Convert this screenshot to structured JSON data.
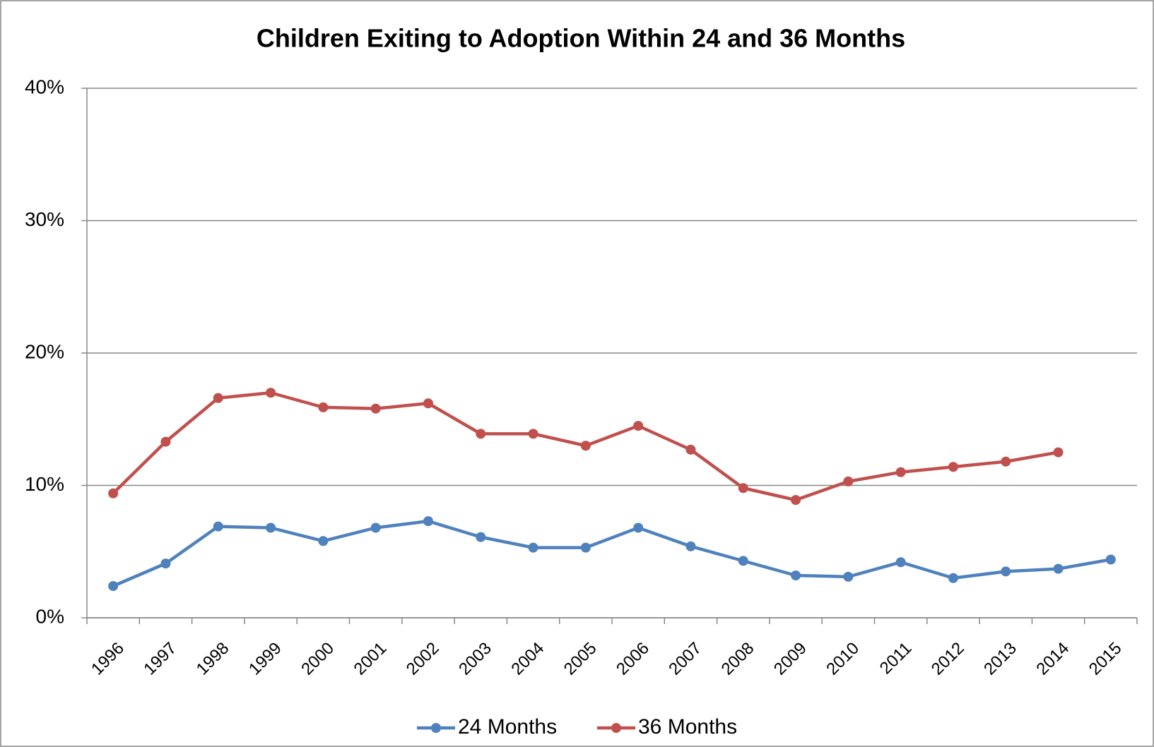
{
  "chart_data": {
    "type": "line",
    "title": "Children Exiting to Adoption Within 24 and 36 Months",
    "categories": [
      "1996",
      "1997",
      "1998",
      "1999",
      "2000",
      "2001",
      "2002",
      "2003",
      "2004",
      "2005",
      "2006",
      "2007",
      "2008",
      "2009",
      "2010",
      "2011",
      "2012",
      "2013",
      "2014",
      "2015"
    ],
    "series": [
      {
        "name": "24 Months",
        "color": "#4f81bd",
        "values": [
          2.4,
          4.1,
          6.9,
          6.8,
          5.8,
          6.8,
          7.3,
          6.1,
          5.3,
          5.3,
          6.8,
          5.4,
          4.3,
          3.2,
          3.1,
          4.2,
          3.0,
          3.5,
          3.7,
          4.4
        ]
      },
      {
        "name": "36 Months",
        "color": "#c0504d",
        "values": [
          9.4,
          13.3,
          16.6,
          17.0,
          15.9,
          15.8,
          16.2,
          13.9,
          13.9,
          13.0,
          14.5,
          12.7,
          9.8,
          8.9,
          10.3,
          11.0,
          11.4,
          11.8,
          12.5,
          null
        ]
      }
    ],
    "ylim": [
      0,
      40
    ],
    "yticks": [
      {
        "value": 0,
        "label": "0%"
      },
      {
        "value": 10,
        "label": "10%"
      },
      {
        "value": 20,
        "label": "20%"
      },
      {
        "value": 30,
        "label": "30%"
      },
      {
        "value": 40,
        "label": "40%"
      }
    ],
    "grid": true,
    "legend": "bottom"
  }
}
